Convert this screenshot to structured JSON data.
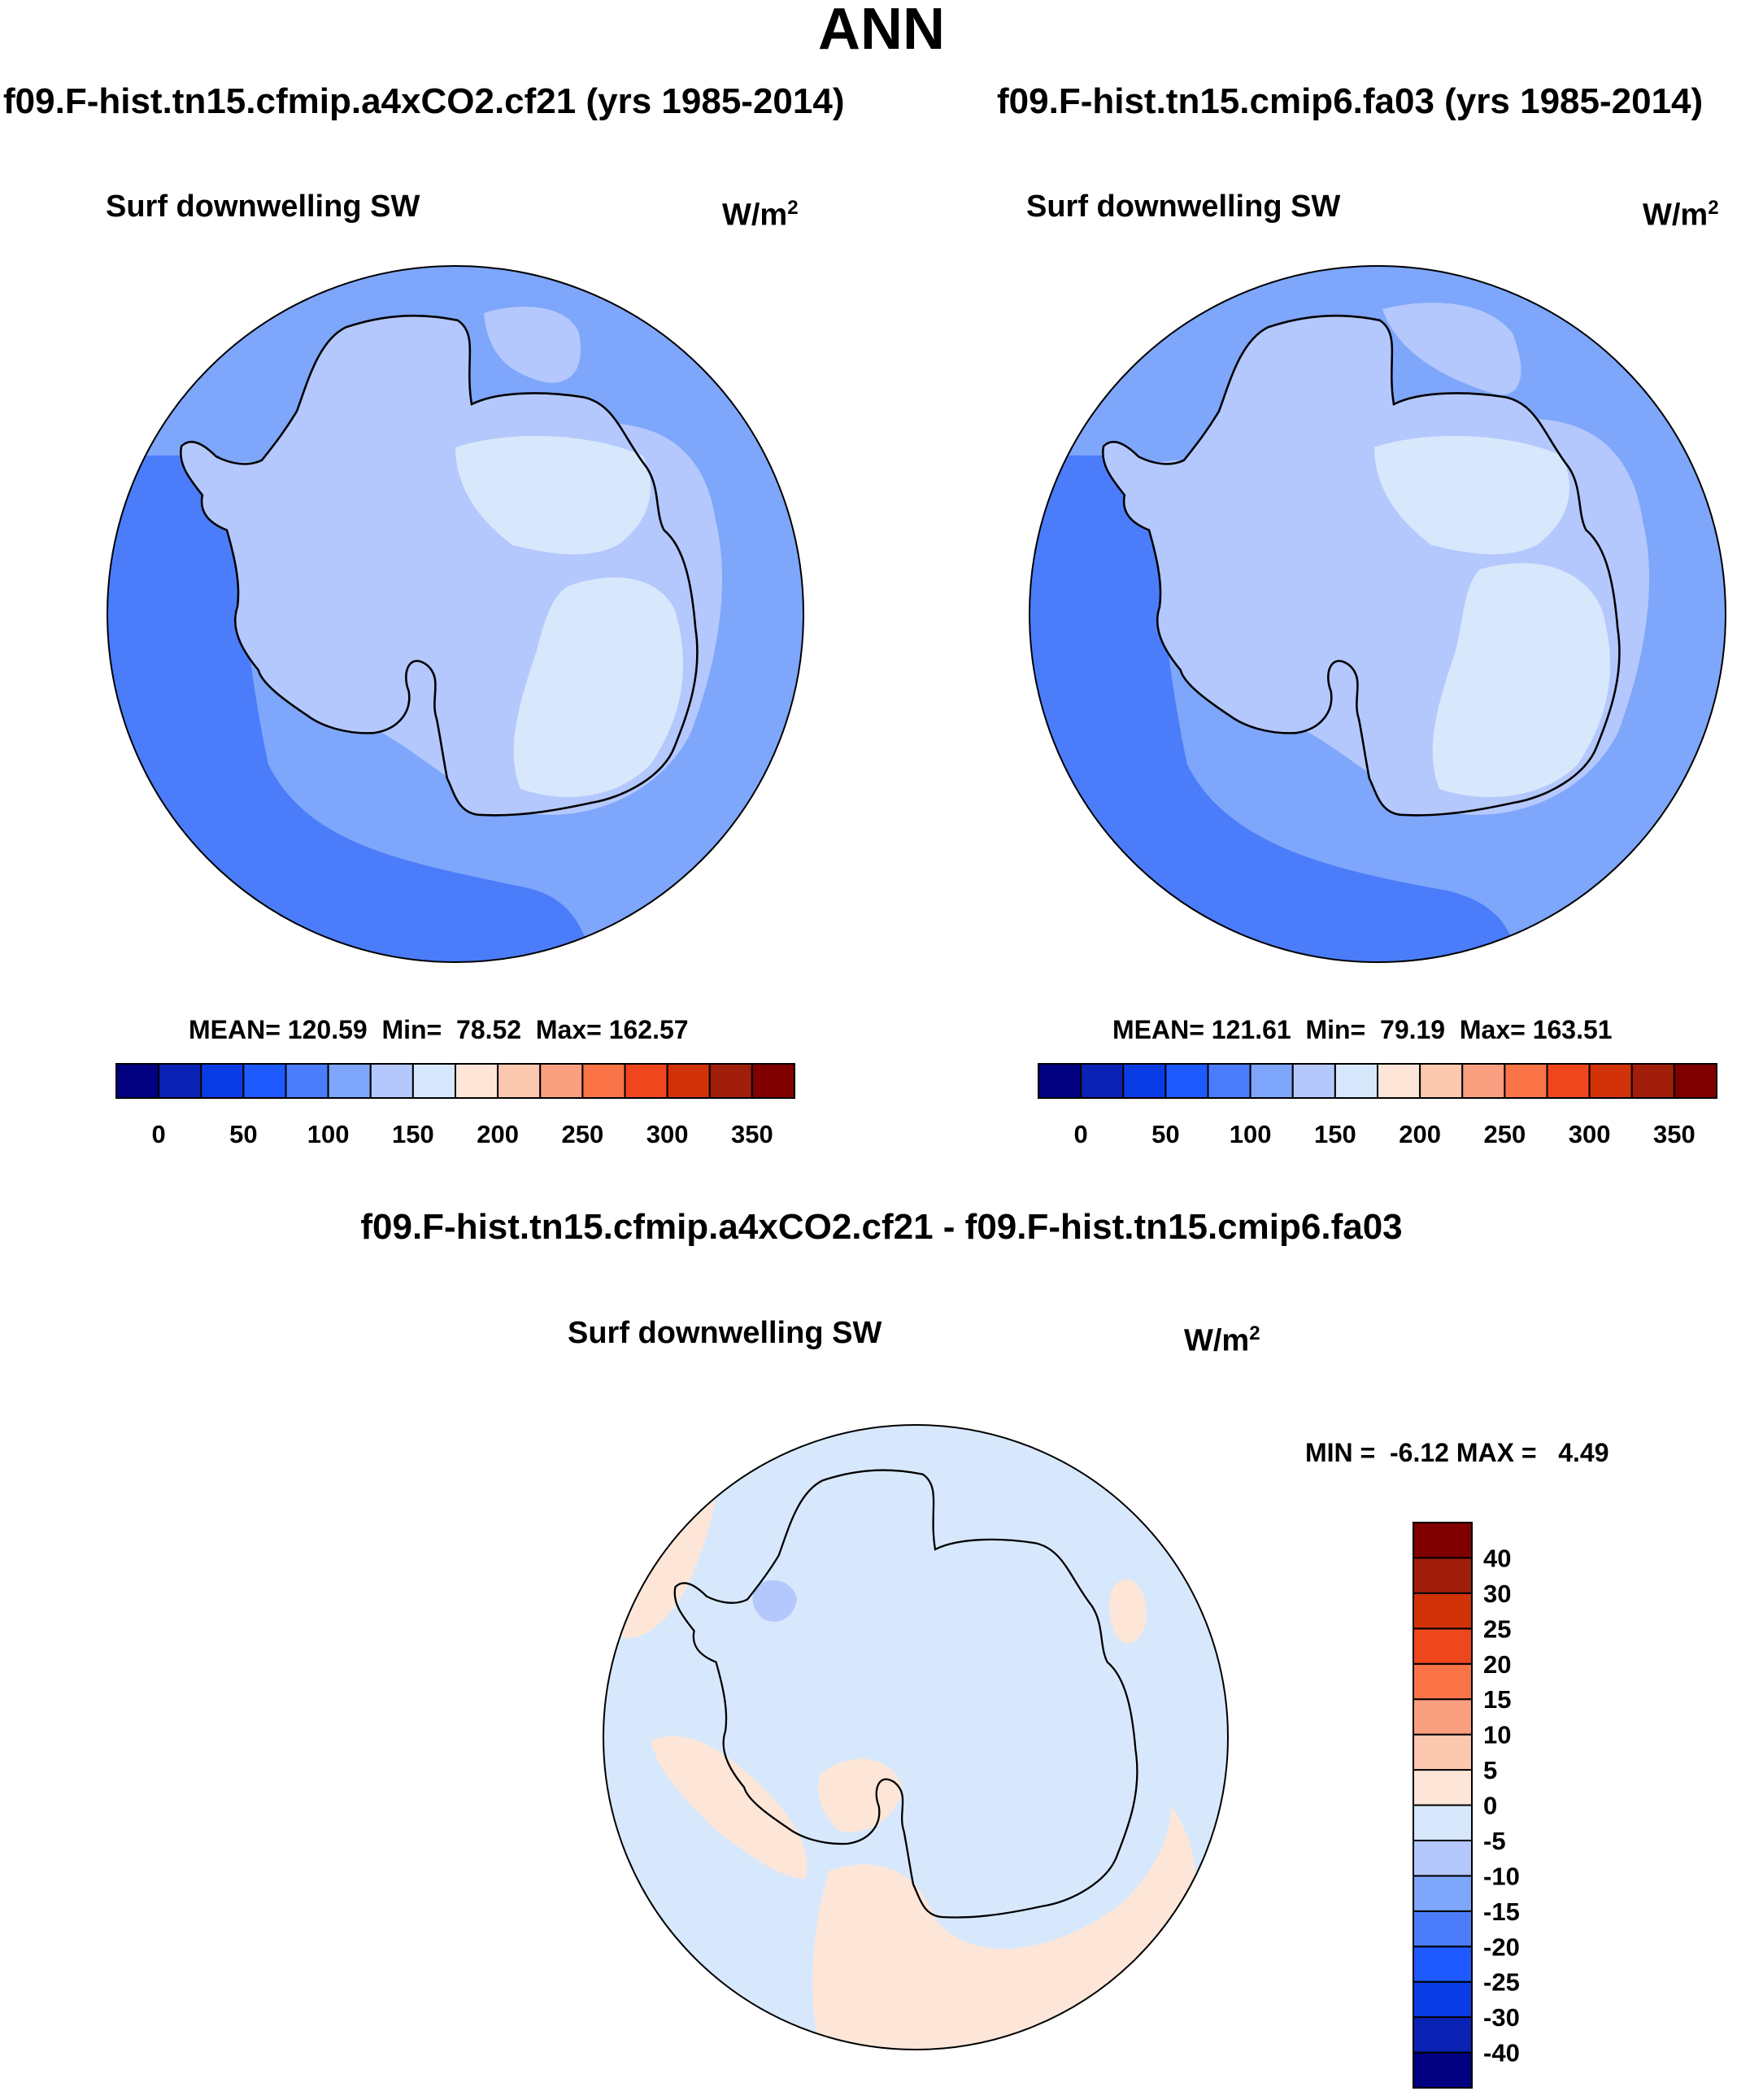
{
  "page_title": "ANN",
  "panels": [
    {
      "case_title": "f09.F-hist.tn15.cfmip.a4xCO2.cf21 (yrs 1985-2014)",
      "variable": "Surf downwelling SW",
      "units_base": "W/m",
      "units_sup": "2",
      "stats": "MEAN= 120.59  Min=  78.52  Max= 162.57"
    },
    {
      "case_title": "f09.F-hist.tn15.cmip6.fa03 (yrs 1985-2014)",
      "variable": "Surf downwelling SW",
      "units_base": "W/m",
      "units_sup": "2",
      "stats": "MEAN= 121.61  Min=  79.19  Max= 163.51"
    }
  ],
  "diff_panel": {
    "case_title": "f09.F-hist.tn15.cfmip.a4xCO2.cf21 - f09.F-hist.tn15.cmip6.fa03",
    "variable": "Surf downwelling SW",
    "units_base": "W/m",
    "units_sup": "2",
    "stats": "MIN =  -6.12 MAX =   4.49"
  },
  "colorbar_abs": {
    "colors": [
      "#000080",
      "#0a23b4",
      "#0a3ce6",
      "#1e5aff",
      "#4b7dfa",
      "#7ea6fb",
      "#b4c8fd",
      "#d8e8fc",
      "#fde6d8",
      "#fcc8af",
      "#fa9f80",
      "#fa7448",
      "#f0461e",
      "#d23208",
      "#a01e0a",
      "#800000"
    ],
    "labels": [
      "0",
      "50",
      "100",
      "150",
      "200",
      "250",
      "300",
      "350"
    ]
  },
  "colorbar_diff": {
    "colors": [
      "#000080",
      "#0a23b4",
      "#0a3ce6",
      "#1e5aff",
      "#4b7dfa",
      "#7ea6fb",
      "#b4c8fd",
      "#d8e8fc",
      "#fde6d8",
      "#fcc8af",
      "#fa9f80",
      "#fa7448",
      "#f0461e",
      "#d23208",
      "#a01e0a",
      "#800000"
    ],
    "labels": [
      "-40",
      "-30",
      "-25",
      "-20",
      "-15",
      "-10",
      "-5",
      "0",
      "5",
      "10",
      "15",
      "20",
      "25",
      "30",
      "40"
    ]
  }
}
